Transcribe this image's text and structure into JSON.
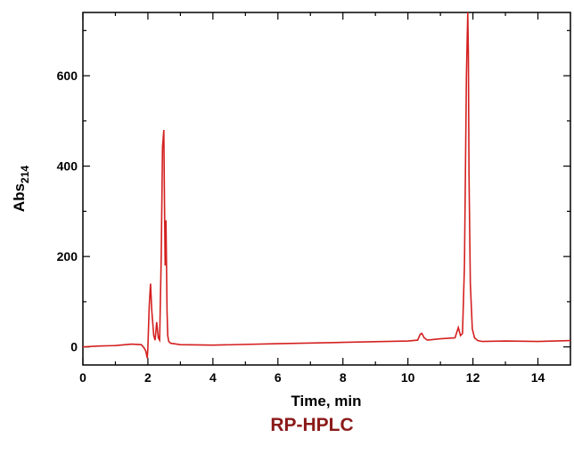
{
  "caption": "RP-HPLC",
  "chart_data": {
    "type": "line",
    "title": "",
    "xlabel": "Time, min",
    "ylabel": {
      "main": "Abs",
      "subscript": "214"
    },
    "xlim": [
      0,
      15
    ],
    "ylim": [
      -40,
      740
    ],
    "x_ticks": [
      0,
      2,
      4,
      6,
      8,
      10,
      12,
      14
    ],
    "y_ticks": [
      0,
      200,
      400,
      600
    ],
    "grid": false,
    "line_color": "#d42020",
    "series": [
      {
        "x": [
          0,
          0.5,
          1.0,
          1.5,
          1.8,
          1.88,
          1.94,
          1.98,
          2.0,
          2.04,
          2.08,
          2.12,
          2.18,
          2.22,
          2.27,
          2.32,
          2.36,
          2.41,
          2.45,
          2.49,
          2.51,
          2.53,
          2.555,
          2.575,
          2.59,
          2.61,
          2.64,
          2.7,
          3.0,
          4.0,
          6.0,
          8.0,
          10.0,
          10.3,
          10.38,
          10.43,
          10.5,
          10.6,
          11.0,
          11.45,
          11.55,
          11.62,
          11.68,
          11.74,
          11.8,
          11.84,
          11.86,
          11.88,
          11.92,
          11.98,
          12.05,
          12.15,
          12.3,
          13.0,
          14.0,
          15.0
        ],
        "y": [
          0,
          2,
          3,
          6,
          5,
          -2,
          -10,
          -25,
          -3,
          90,
          140,
          80,
          25,
          15,
          55,
          20,
          15,
          200,
          440,
          480,
          330,
          180,
          280,
          170,
          80,
          25,
          12,
          8,
          5,
          4,
          7,
          10,
          13,
          15,
          28,
          30,
          20,
          15,
          18,
          20,
          43,
          25,
          30,
          180,
          600,
          740,
          650,
          380,
          140,
          40,
          20,
          14,
          12,
          13,
          12,
          14
        ]
      }
    ]
  }
}
